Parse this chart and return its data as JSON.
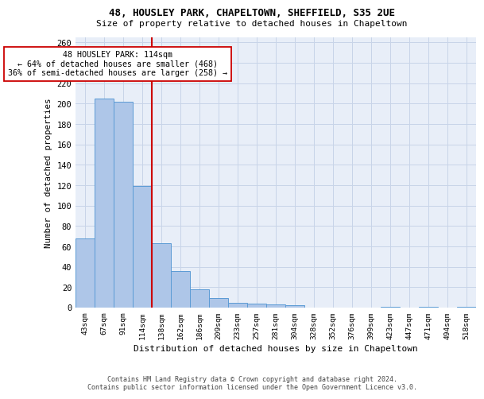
{
  "title_line1": "48, HOUSLEY PARK, CHAPELTOWN, SHEFFIELD, S35 2UE",
  "title_line2": "Size of property relative to detached houses in Chapeltown",
  "xlabel": "Distribution of detached houses by size in Chapeltown",
  "ylabel": "Number of detached properties",
  "categories": [
    "43sqm",
    "67sqm",
    "91sqm",
    "114sqm",
    "138sqm",
    "162sqm",
    "186sqm",
    "209sqm",
    "233sqm",
    "257sqm",
    "281sqm",
    "304sqm",
    "328sqm",
    "352sqm",
    "376sqm",
    "399sqm",
    "423sqm",
    "447sqm",
    "471sqm",
    "494sqm",
    "518sqm"
  ],
  "values": [
    68,
    205,
    202,
    119,
    63,
    36,
    18,
    9,
    5,
    4,
    3,
    2,
    0,
    0,
    0,
    0,
    1,
    0,
    1,
    0,
    1
  ],
  "bar_color": "#aec6e8",
  "bar_edge_color": "#5b9bd5",
  "vline_x": 3.5,
  "vline_color": "#cc0000",
  "annotation_text": "  48 HOUSLEY PARK: 114sqm  \n← 64% of detached houses are smaller (468)\n36% of semi-detached houses are larger (258) →",
  "annotation_box_color": "white",
  "annotation_box_edge_color": "#cc0000",
  "ylim": [
    0,
    265
  ],
  "yticks": [
    0,
    20,
    40,
    60,
    80,
    100,
    120,
    140,
    160,
    180,
    200,
    220,
    240,
    260
  ],
  "grid_color": "#c8d4e8",
  "background_color": "#e8eef8",
  "footer_line1": "Contains HM Land Registry data © Crown copyright and database right 2024.",
  "footer_line2": "Contains public sector information licensed under the Open Government Licence v3.0."
}
